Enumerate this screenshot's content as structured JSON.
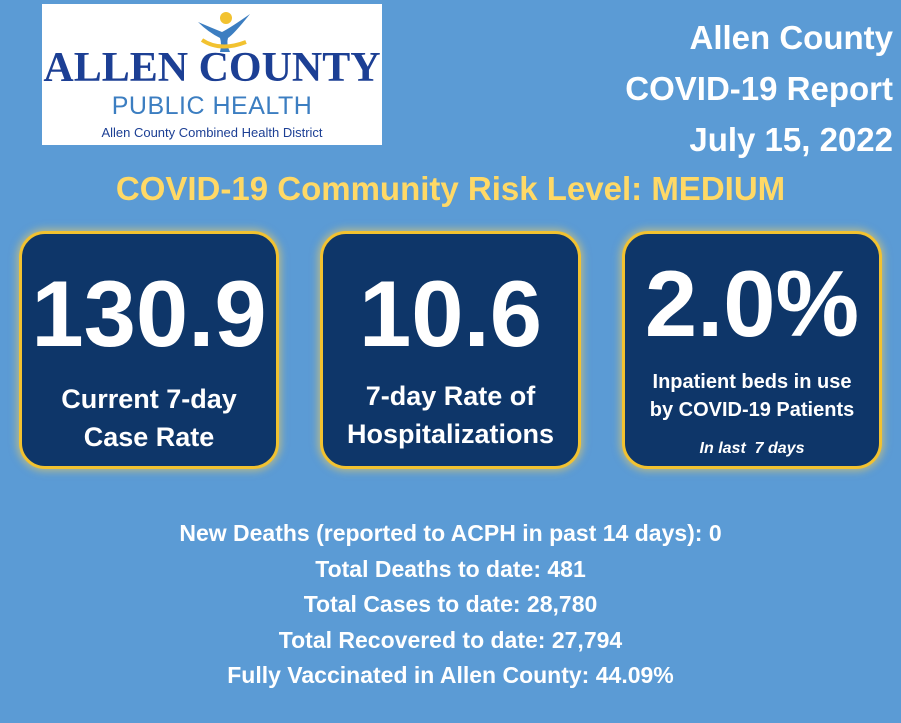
{
  "logo": {
    "title": "ALLEN COUNTY",
    "subtitle": "PUBLIC HEALTH",
    "district": "Allen County Combined Health District",
    "icon": "person-figure-icon"
  },
  "report": {
    "line1": "Allen County",
    "line2": "COVID-19 Report",
    "date": "July 15, 2022"
  },
  "risk_level": "COVID-19 Community Risk Level: MEDIUM",
  "cards": [
    {
      "value": "130.9",
      "label_line1": "Current 7-day",
      "label_line2": "Case Rate"
    },
    {
      "value": "10.6",
      "label_line1": "7-day Rate of",
      "label_line2": "Hospitalizations"
    },
    {
      "value": "2.0%",
      "label_line1": "Inpatient beds in use",
      "label_line2": "by COVID-19 Patients",
      "note": "In last  7 days"
    }
  ],
  "stats": {
    "new_deaths": "New Deaths (reported to ACPH in past 14 days): 0",
    "total_deaths": "Total Deaths to date: 481",
    "total_cases": "Total Cases to date: 28,780",
    "total_recovered": "Total Recovered to date: 27,794",
    "fully_vaccinated": "Fully Vaccinated in Allen County: 44.09%"
  },
  "colors": {
    "background": "#5b9bd5",
    "card": "#0e3669",
    "card_border": "#f2c230",
    "risk_text": "#ffd966",
    "logo_navy": "#1c3f94",
    "logo_blue": "#3c7ec1"
  }
}
